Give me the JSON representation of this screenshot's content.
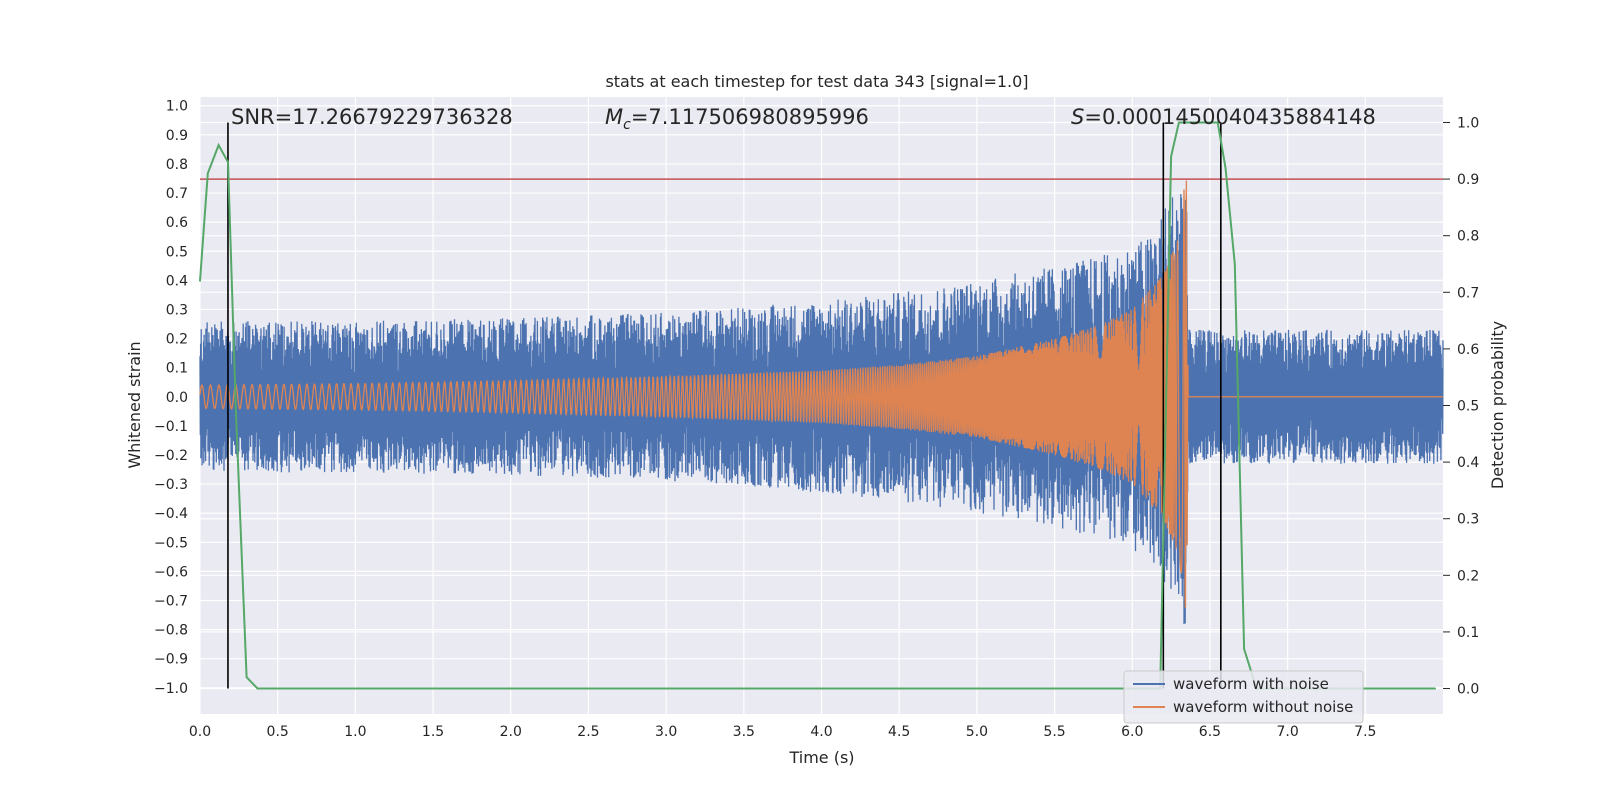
{
  "chart_data": {
    "type": "line",
    "title": "stats at each timestep for test data 343 [signal=1.0]",
    "xlabel": "Time (s)",
    "ylabel": "Whitened strain",
    "y2label": "Detection probability",
    "xlim": [
      0.0,
      8.0
    ],
    "ylim": [
      -1.09,
      1.03
    ],
    "y2lim": [
      -0.045,
      1.045
    ],
    "x_ticks": [
      "0.0",
      "0.5",
      "1.0",
      "1.5",
      "2.0",
      "2.5",
      "3.0",
      "3.5",
      "4.0",
      "4.5",
      "5.0",
      "5.5",
      "6.0",
      "6.5",
      "7.0",
      "7.5"
    ],
    "y_ticks": [
      "1.0",
      "0.9",
      "0.8",
      "0.7",
      "0.6",
      "0.5",
      "0.4",
      "0.3",
      "0.2",
      "0.1",
      "0.0",
      "−0.1",
      "−0.2",
      "−0.3",
      "−0.4",
      "−0.5",
      "−0.6",
      "−0.7",
      "−0.8",
      "−0.9",
      "−1.0"
    ],
    "y2_ticks": [
      "1.0",
      "0.9",
      "0.8",
      "0.7",
      "0.6",
      "0.5",
      "0.4",
      "0.3",
      "0.2",
      "0.1",
      "0.0"
    ],
    "grid": true,
    "legend_position": "lower right",
    "annotations": {
      "snr": "SNR=17.26679229736328",
      "mc_symbol": "M",
      "mc_sub": "c",
      "mc_value": "=7.117506980895996",
      "s_symbol": "S",
      "s_value": "=0.0001450040435884148"
    },
    "series": [
      {
        "name": "waveform with noise",
        "color": "#4c72b0",
        "kind": "noisy strain envelope",
        "envelope": [
          [
            0.0,
            0.26
          ],
          [
            1.0,
            0.26
          ],
          [
            2.0,
            0.27
          ],
          [
            3.0,
            0.29
          ],
          [
            4.0,
            0.33
          ],
          [
            4.5,
            0.36
          ],
          [
            5.0,
            0.4
          ],
          [
            5.5,
            0.45
          ],
          [
            5.9,
            0.5
          ],
          [
            6.1,
            0.55
          ],
          [
            6.25,
            0.7
          ],
          [
            6.35,
            0.82
          ],
          [
            6.36,
            0.23
          ],
          [
            8.0,
            0.23
          ]
        ]
      },
      {
        "name": "waveform without noise",
        "color": "#dd8452",
        "kind": "chirp",
        "envelope": [
          [
            0.0,
            0.04
          ],
          [
            1.0,
            0.045
          ],
          [
            2.0,
            0.055
          ],
          [
            3.0,
            0.07
          ],
          [
            4.0,
            0.09
          ],
          [
            4.5,
            0.11
          ],
          [
            5.0,
            0.14
          ],
          [
            5.5,
            0.2
          ],
          [
            5.8,
            0.25
          ],
          [
            6.0,
            0.3
          ],
          [
            6.2,
            0.42
          ],
          [
            6.3,
            0.55
          ],
          [
            6.35,
            0.8
          ],
          [
            6.36,
            0.0
          ],
          [
            8.0,
            0.0
          ]
        ]
      },
      {
        "name": "",
        "color": "#55a868",
        "axis": "right",
        "x": [
          0.0,
          0.05,
          0.12,
          0.18,
          0.23,
          0.3,
          0.37,
          1.0,
          3.0,
          5.0,
          6.18,
          6.25,
          6.3,
          6.35,
          6.55,
          6.6,
          6.66,
          6.72,
          6.8,
          7.0,
          7.5,
          7.95
        ],
        "y": [
          0.72,
          0.91,
          0.96,
          0.93,
          0.5,
          0.02,
          0.0,
          0.0,
          0.0,
          0.0,
          0.0,
          0.94,
          1.0,
          1.0,
          1.0,
          0.92,
          0.75,
          0.07,
          0.0,
          0.0,
          0.0,
          0.0
        ]
      }
    ],
    "threshold": {
      "axis": "right",
      "value": 0.9,
      "color": "#c44e52"
    },
    "vlines": [
      0.18,
      6.2,
      6.57
    ]
  }
}
